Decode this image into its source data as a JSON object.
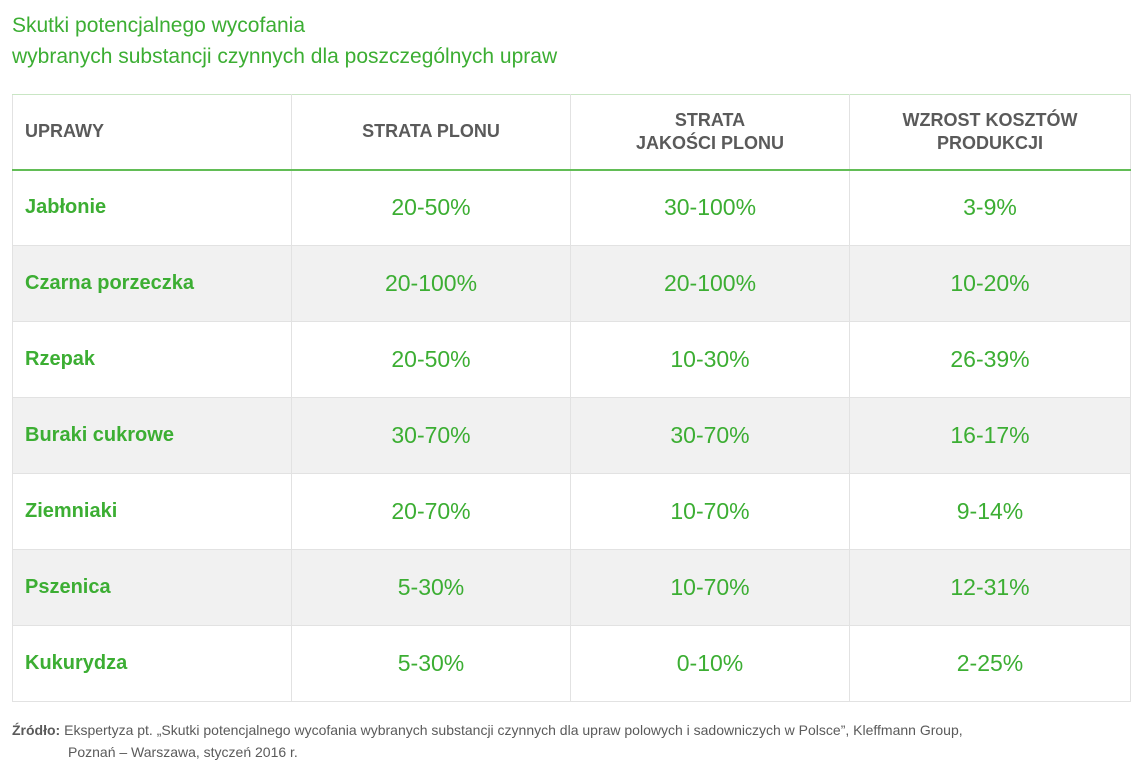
{
  "title": {
    "line1": "Skutki potencjalnego wycofania",
    "line2": "wybranych substancji czynnych dla poszczególnych upraw"
  },
  "table": {
    "headers": {
      "col0": [
        "UPRAWY"
      ],
      "col1": [
        "STRATA PLONU"
      ],
      "col2": [
        "STRATA",
        "JAKOŚCI PLONU"
      ],
      "col3": [
        "WZROST KOSZTÓW",
        "PRODUKCJI"
      ]
    },
    "rows": [
      {
        "crop": "Jabłonie",
        "yield_loss": "20-50%",
        "quality_loss": "30-100%",
        "cost_increase": "3-9%"
      },
      {
        "crop": "Czarna porzeczka",
        "yield_loss": "20-100%",
        "quality_loss": "20-100%",
        "cost_increase": "10-20%"
      },
      {
        "crop": "Rzepak",
        "yield_loss": "20-50%",
        "quality_loss": "10-30%",
        "cost_increase": "26-39%"
      },
      {
        "crop": "Buraki cukrowe",
        "yield_loss": "30-70%",
        "quality_loss": "30-70%",
        "cost_increase": "16-17%"
      },
      {
        "crop": "Ziemniaki",
        "yield_loss": "20-70%",
        "quality_loss": "10-70%",
        "cost_increase": "9-14%"
      },
      {
        "crop": "Pszenica",
        "yield_loss": "5-30%",
        "quality_loss": "10-70%",
        "cost_increase": "12-31%"
      },
      {
        "crop": "Kukurydza",
        "yield_loss": "5-30%",
        "quality_loss": "0-10%",
        "cost_increase": "2-25%"
      }
    ]
  },
  "source": {
    "label": "Źródło:",
    "line1": "Ekspertyza pt. „Skutki potencjalnego wycofania wybranych substancji czynnych dla upraw polowych i sadowniczych w Polsce”, Kleffmann Group,",
    "line2": "Poznań – Warszawa, styczeń 2016 r."
  },
  "colors": {
    "accent_green": "#3cae33",
    "header_rule": "#62bd56",
    "stripe": "#f1f1f1",
    "text_gray": "#5a5a5a"
  }
}
